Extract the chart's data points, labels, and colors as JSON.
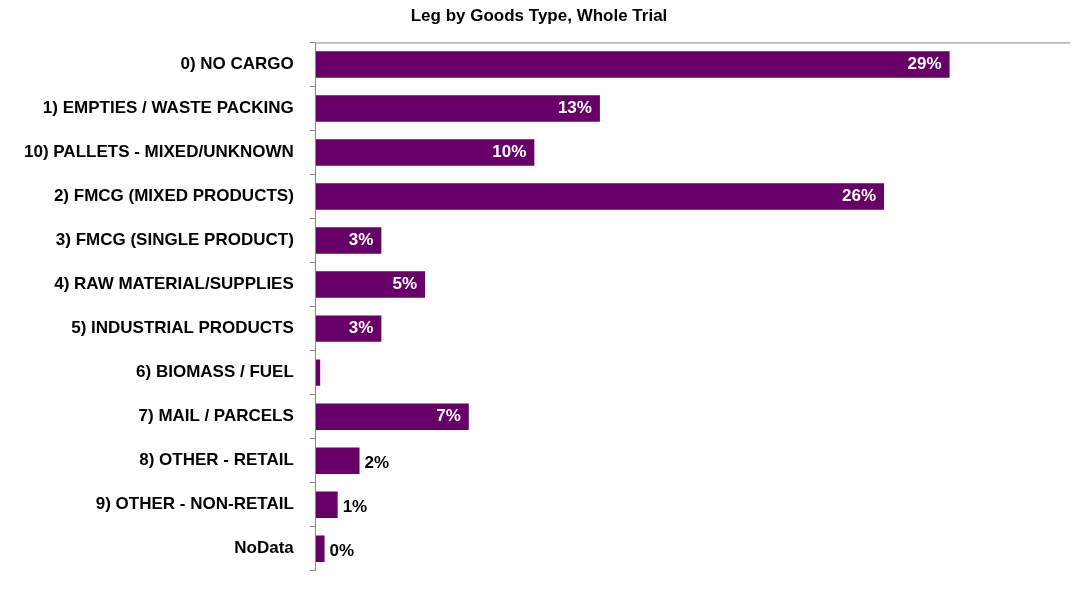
{
  "chart_data": {
    "type": "bar",
    "orientation": "horizontal",
    "title": "Leg by Goods Type, Whole Trial",
    "categories": [
      "0) NO CARGO",
      "1) EMPTIES / WASTE PACKING",
      "10) PALLETS - MIXED/UNKNOWN",
      "2) FMCG (MIXED PRODUCTS)",
      "3) FMCG (SINGLE PRODUCT)",
      "4) RAW MATERIAL/SUPPLIES",
      "5) INDUSTRIAL PRODUCTS",
      "6) BIOMASS / FUEL",
      "7) MAIL / PARCELS",
      "8) OTHER - RETAIL",
      "9) OTHER - NON-RETAIL",
      "NoData"
    ],
    "values": [
      29,
      13,
      10,
      26,
      3,
      5,
      3,
      0.2,
      7,
      2,
      1,
      0.4
    ],
    "value_labels": [
      "29%",
      "13%",
      "10%",
      "26%",
      "3%",
      "5%",
      "3%",
      null,
      "7%",
      "2%",
      "1%",
      "0%"
    ],
    "color": "#660066",
    "grid": false,
    "legend": false
  }
}
